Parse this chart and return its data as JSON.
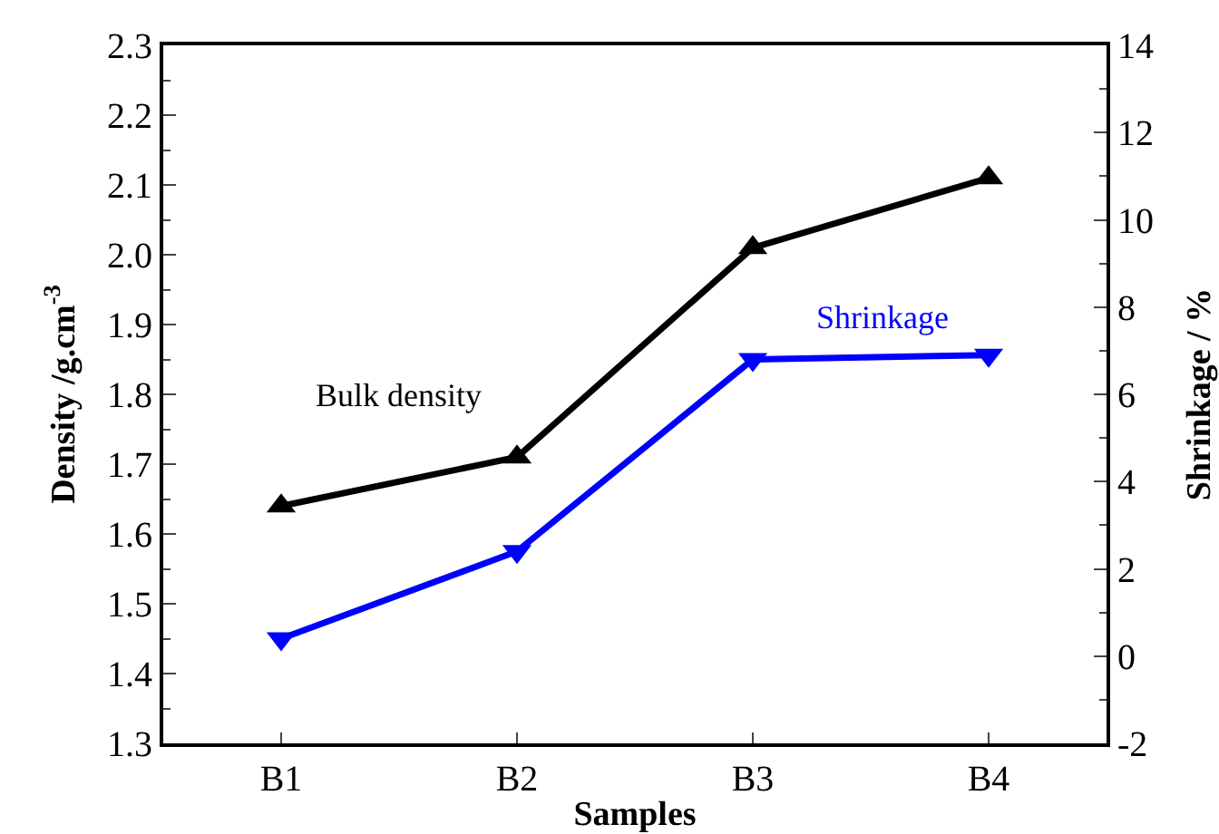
{
  "chart_data": {
    "type": "line",
    "categories": [
      "B1",
      "B2",
      "B3",
      "B4"
    ],
    "xlabel": "Samples",
    "ylabel": "Density /g.cm$^{-3}$",
    "y2label": "Shrinkage / %",
    "ylim": [
      1.3,
      2.3
    ],
    "yticks": [
      1.3,
      1.4,
      1.5,
      1.6,
      1.7,
      1.8,
      1.9,
      {
        "value": 2,
        "label": "2.0"
      },
      2.1,
      2.2,
      2.3
    ],
    "y2lim": [
      -2,
      14
    ],
    "y2ticks": [
      -2,
      0,
      2,
      4,
      6,
      8,
      10,
      12,
      14
    ],
    "series": [
      {
        "name": "Bulk density",
        "color": "#000000",
        "marker": "triangle-up",
        "values": [
          1.64,
          1.71,
          2.01,
          2.11
        ]
      },
      {
        "name": "Shrinkage",
        "color": "#0000ff",
        "marker": "triangle-down",
        "axis": "y2",
        "values": [
          0.4,
          2.4,
          6.8,
          6.9
        ]
      }
    ],
    "legend": false,
    "grid": false
  }
}
